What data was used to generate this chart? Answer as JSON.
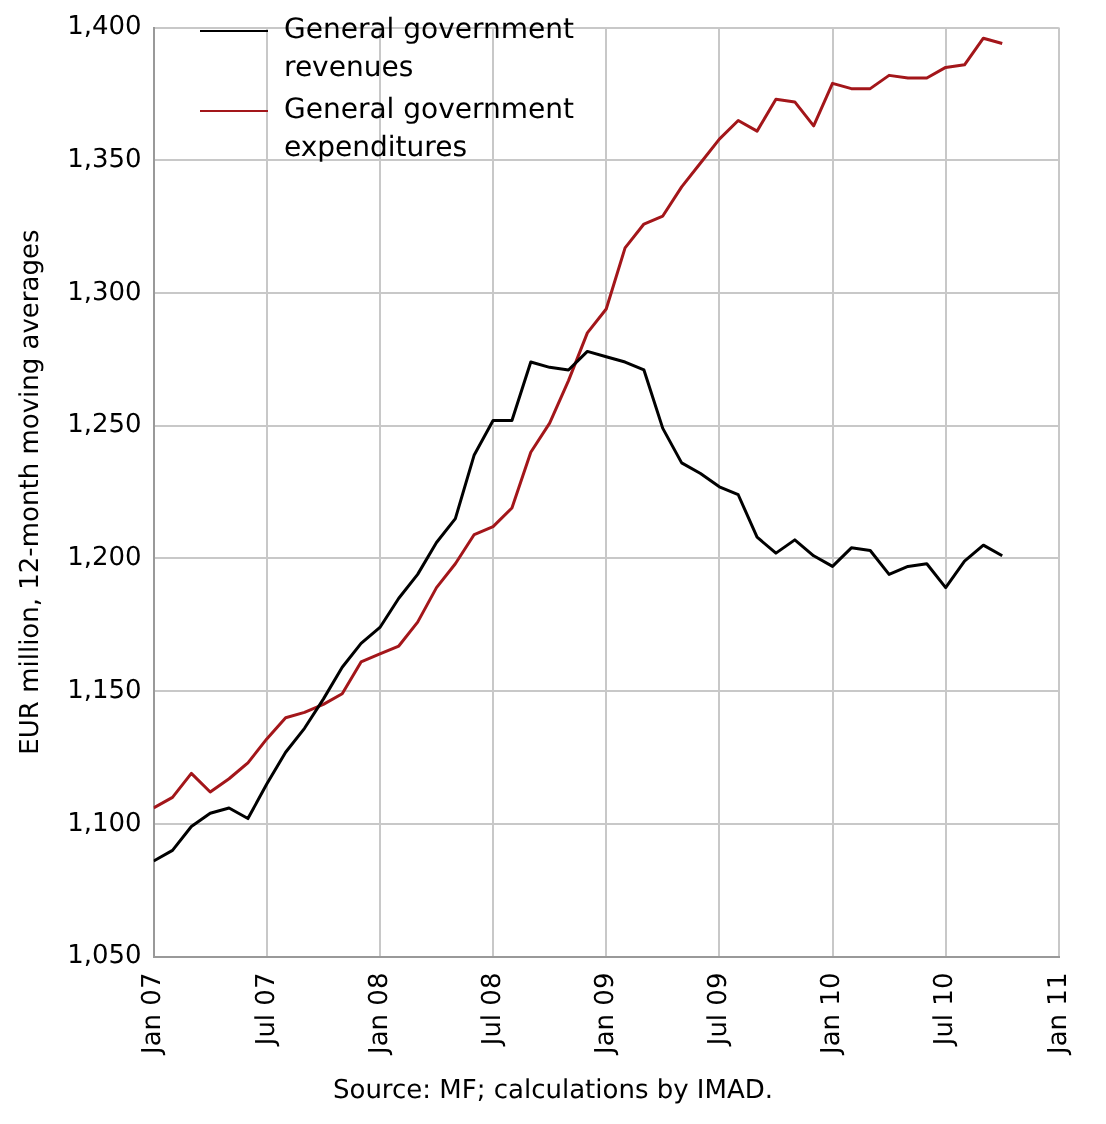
{
  "chart_data": {
    "type": "line",
    "ylabel": "EUR million, 12-month moving averages",
    "annotations": [
      "Source: MF; calculations by IMAD."
    ],
    "x": [
      "2007-01",
      "2007-02",
      "2007-03",
      "2007-04",
      "2007-05",
      "2007-06",
      "2007-07",
      "2007-08",
      "2007-09",
      "2007-10",
      "2007-11",
      "2007-12",
      "2008-01",
      "2008-02",
      "2008-03",
      "2008-04",
      "2008-05",
      "2008-06",
      "2008-07",
      "2008-08",
      "2008-09",
      "2008-10",
      "2008-11",
      "2008-12",
      "2009-01",
      "2009-02",
      "2009-03",
      "2009-04",
      "2009-05",
      "2009-06",
      "2009-07",
      "2009-08",
      "2009-09",
      "2009-10",
      "2009-11",
      "2009-12",
      "2010-01",
      "2010-02",
      "2010-03",
      "2010-04",
      "2010-05",
      "2010-06",
      "2010-07",
      "2010-08",
      "2010-09",
      "2010-10"
    ],
    "series": [
      {
        "name": "General government revenues",
        "color": "#000000",
        "values": [
          1086,
          1090,
          1099,
          1104,
          1106,
          1102,
          1115,
          1127,
          1136,
          1147,
          1159,
          1168,
          1174,
          1185,
          1194,
          1206,
          1215,
          1239,
          1252,
          1252,
          1274,
          1272,
          1271,
          1278,
          1276,
          1274,
          1271,
          1249,
          1236,
          1232,
          1227,
          1224,
          1208,
          1202,
          1207,
          1201,
          1197,
          1204,
          1203,
          1194,
          1197,
          1198,
          1189,
          1199,
          1205,
          1201
        ]
      },
      {
        "name": "General government expenditures",
        "color": "#a3161a",
        "values": [
          1106,
          1110,
          1119,
          1112,
          1117,
          1123,
          1132,
          1140,
          1142,
          1145,
          1149,
          1161,
          1164,
          1167,
          1176,
          1189,
          1198,
          1209,
          1212,
          1219,
          1240,
          1251,
          1267,
          1285,
          1294,
          1317,
          1326,
          1329,
          1340,
          1349,
          1358,
          1365,
          1361,
          1373,
          1372,
          1363,
          1379,
          1377,
          1377,
          1382,
          1381,
          1381,
          1385,
          1386,
          1396,
          1394
        ]
      }
    ],
    "xlim": [
      "2007-01",
      "2011-01"
    ],
    "xticks": [
      {
        "value": "2007-01",
        "label": "Jan 07"
      },
      {
        "value": "2007-07",
        "label": "Jul 07"
      },
      {
        "value": "2008-01",
        "label": "Jan 08"
      },
      {
        "value": "2008-07",
        "label": "Jul 08"
      },
      {
        "value": "2009-01",
        "label": "Jan 09"
      },
      {
        "value": "2009-07",
        "label": "Jul 09"
      },
      {
        "value": "2010-01",
        "label": "Jan 10"
      },
      {
        "value": "2010-07",
        "label": "Jul 10"
      },
      {
        "value": "2011-01",
        "label": "Jan 11"
      }
    ],
    "ylim": [
      1050,
      1400
    ],
    "yticks": [
      {
        "value": 1050,
        "label": "1,050"
      },
      {
        "value": 1100,
        "label": "1,100"
      },
      {
        "value": 1150,
        "label": "1,150"
      },
      {
        "value": 1200,
        "label": "1,200"
      },
      {
        "value": 1250,
        "label": "1,250"
      },
      {
        "value": 1300,
        "label": "1,300"
      },
      {
        "value": 1350,
        "label": "1,350"
      },
      {
        "value": 1400,
        "label": "1,400"
      }
    ],
    "grid": true,
    "legend": "top left",
    "marker": "none",
    "line_style": "solid"
  }
}
